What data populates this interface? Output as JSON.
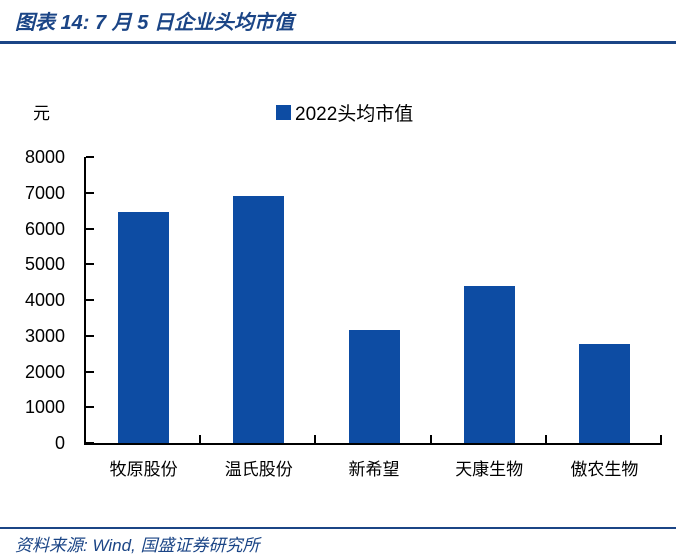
{
  "figure": {
    "title": "图表 14: 7 月 5 日企业头均市值",
    "unit_label": "元",
    "legend_label": "2022头均市值",
    "source": "资料来源: Wind, 国盛证券研究所"
  },
  "colors": {
    "accent_blue": "#1b4586",
    "bar_blue": "#0d4ca3",
    "axis_black": "#000000"
  },
  "chart_data": {
    "type": "bar",
    "title": "7月5日企业头均市值",
    "categories": [
      "牧原股份",
      "温氏股份",
      "新希望",
      "天康生物",
      "傲农生物"
    ],
    "series": [
      {
        "name": "2022头均市值",
        "values": [
          6450,
          6900,
          3160,
          4400,
          2760
        ]
      }
    ],
    "xlabel": "",
    "ylabel": "元",
    "ylim": [
      0,
      8000
    ],
    "yticks": [
      0,
      1000,
      2000,
      3000,
      4000,
      5000,
      6000,
      7000,
      8000
    ],
    "grid": false,
    "legend_position": "top-center",
    "bar_color": "#0d4ca3"
  }
}
